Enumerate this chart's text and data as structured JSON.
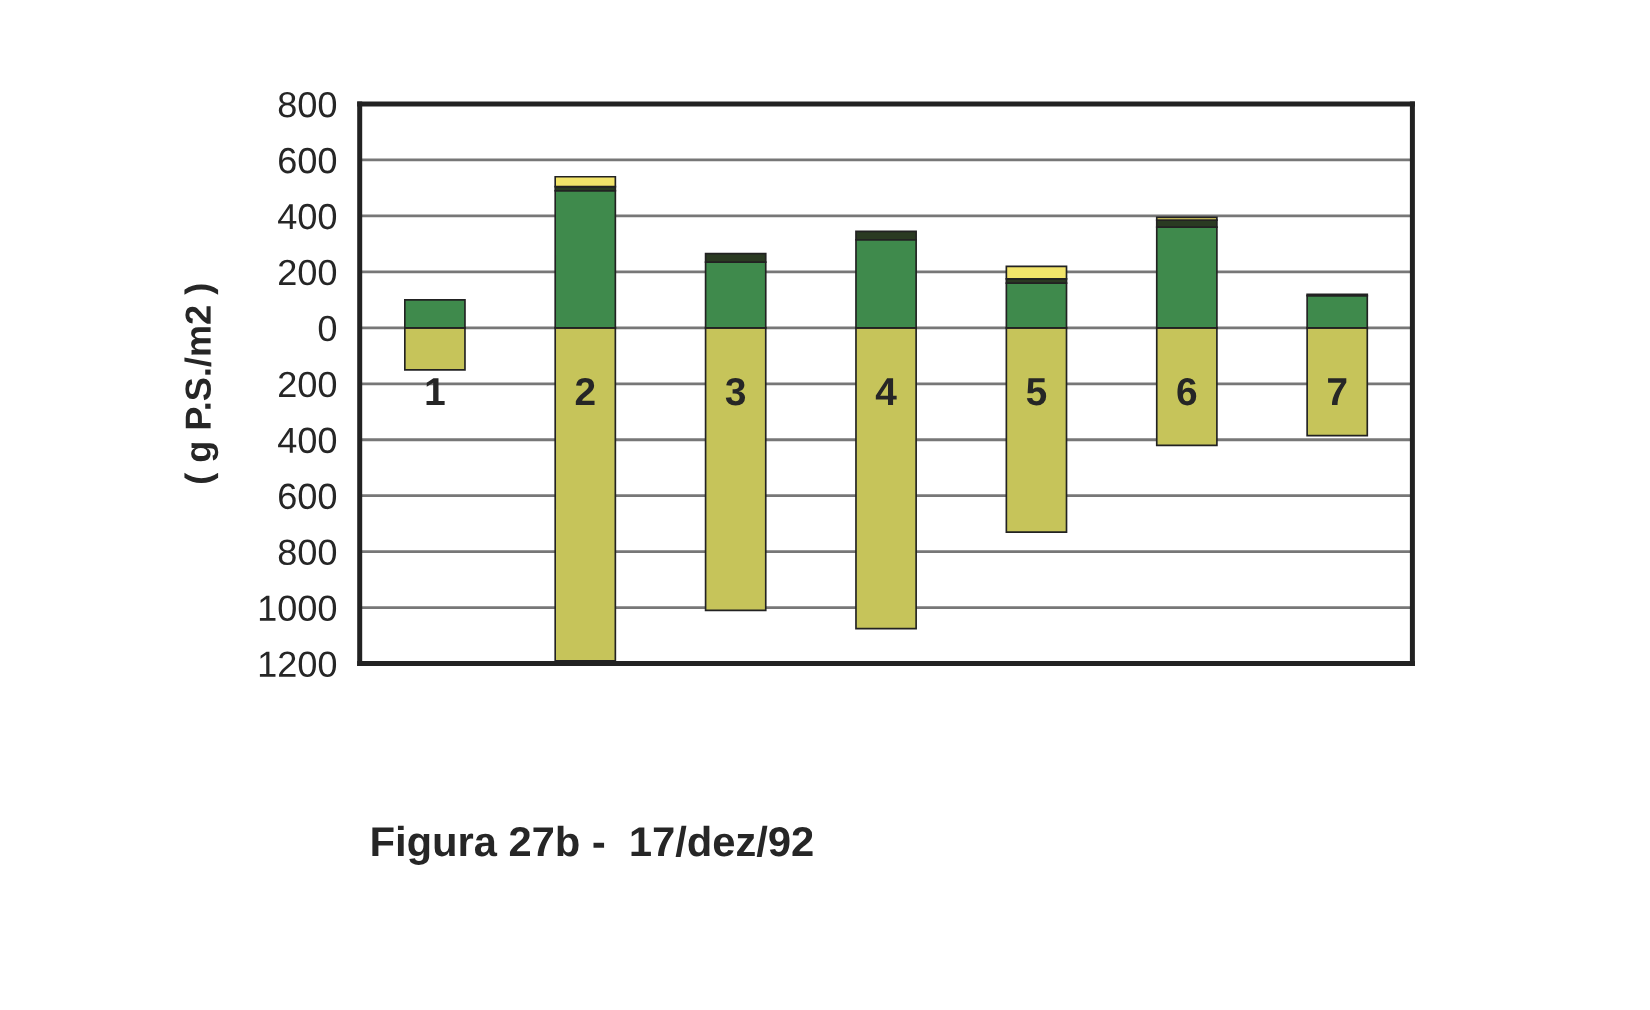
{
  "chart_data": {
    "type": "bar",
    "title": "Figura 27b -  17/dez/92",
    "ylabel": "( g P.S./m2 )",
    "categories": [
      "1",
      "2",
      "3",
      "4",
      "5",
      "6",
      "7"
    ],
    "stacked": true,
    "series": [
      {
        "color": "#c6c45a",
        "values": [
          -150,
          -1190,
          -1010,
          -1075,
          -730,
          -420,
          -385
        ]
      },
      {
        "color": "#3f8a4c",
        "values": [
          100,
          490,
          235,
          315,
          160,
          360,
          115
        ]
      },
      {
        "color": "#2a3a22",
        "values": [
          null,
          15,
          30,
          30,
          15,
          25,
          5
        ]
      },
      {
        "color": "#f2e46a",
        "values": [
          null,
          35,
          null,
          null,
          45,
          10,
          null
        ]
      }
    ],
    "ylim": [
      -1200,
      800
    ],
    "yticks": [
      800,
      600,
      400,
      200,
      0,
      {
        "value": -200,
        "label": "200"
      },
      {
        "value": -400,
        "label": "400"
      },
      {
        "value": -600,
        "label": "600"
      },
      {
        "value": -800,
        "label": "800"
      },
      {
        "value": -1000,
        "label": "1000"
      },
      {
        "value": -1200,
        "label": "1200"
      }
    ],
    "grid": "y",
    "legend": false
  }
}
